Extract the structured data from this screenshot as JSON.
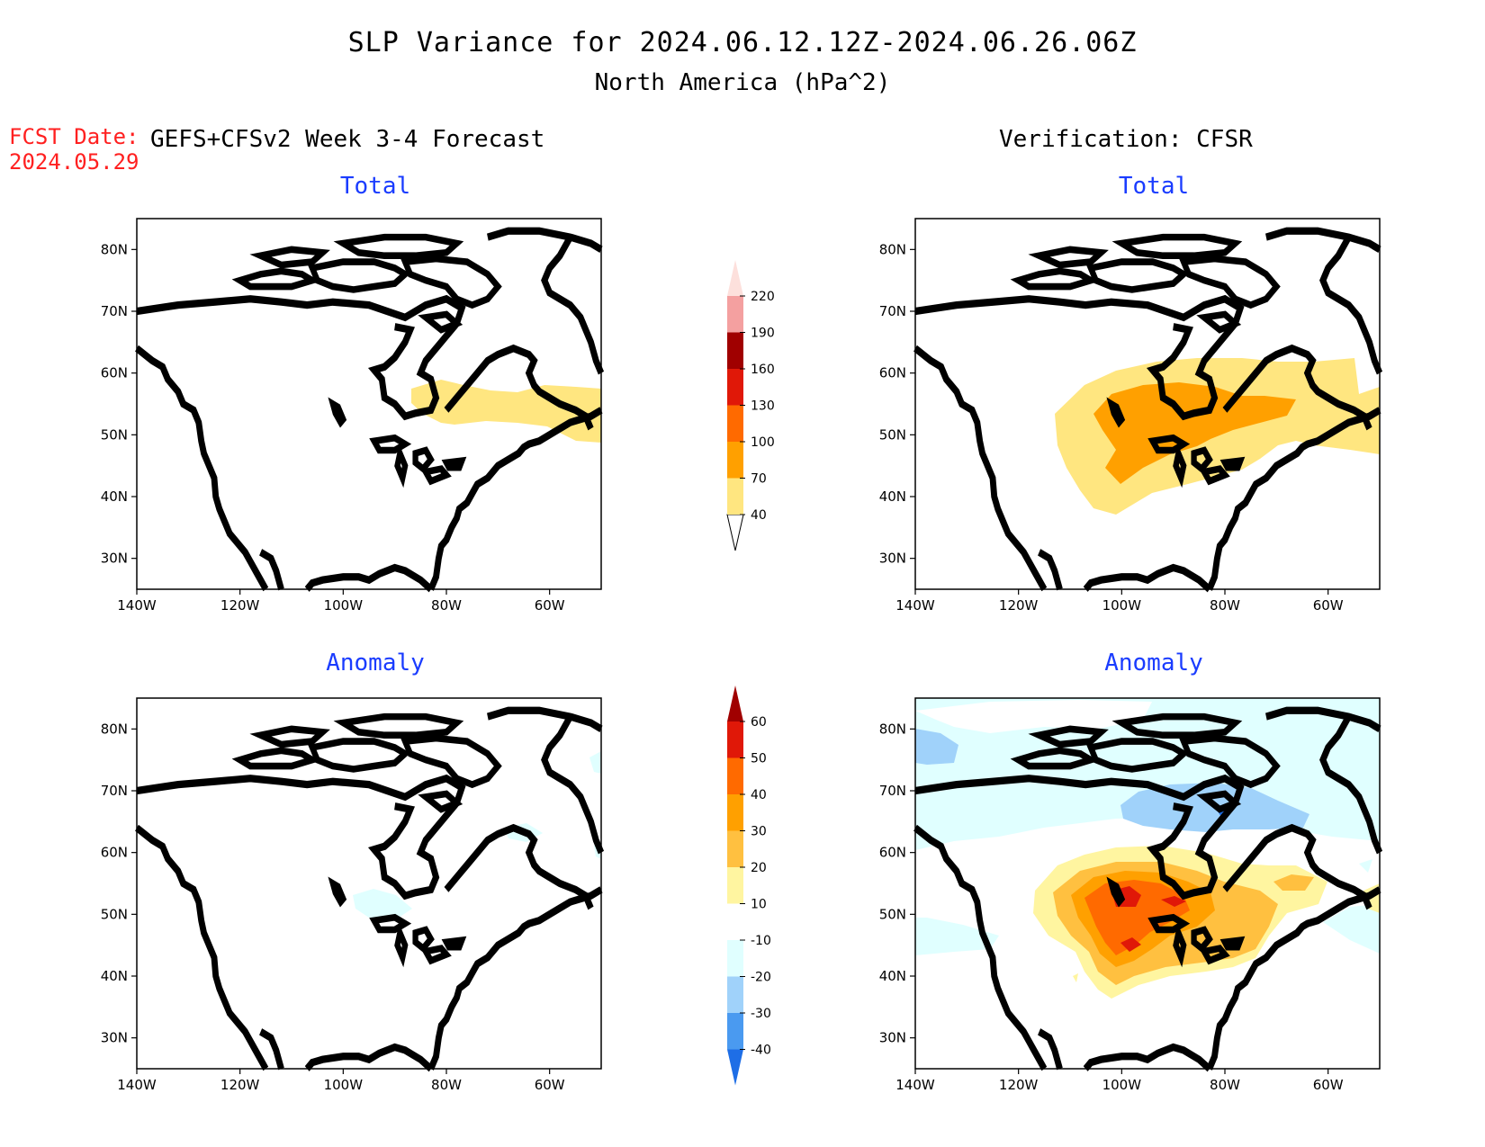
{
  "header": {
    "title": "SLP Variance for 2024.06.12.12Z-2024.06.26.06Z",
    "subtitle": "North America (hPa^2)",
    "fcst_label": "FCST Date:",
    "fcst_date": "2024.05.29",
    "left_column_title": "GEFS+CFSv2 Week 3-4 Forecast",
    "right_column_title": "Verification: CFSR"
  },
  "panels": {
    "fc_total": {
      "title": "Total"
    },
    "vr_total": {
      "title": "Total"
    },
    "fc_anom": {
      "title": "Anomaly"
    },
    "vr_anom": {
      "title": "Anomaly"
    }
  },
  "axes": {
    "lat_ticks": [
      "80N",
      "70N",
      "60N",
      "50N",
      "40N",
      "30N"
    ],
    "lon_ticks": [
      "140W",
      "120W",
      "100W",
      "80W",
      "60W"
    ]
  },
  "colorbars": {
    "total": {
      "labels": [
        "220",
        "190",
        "160",
        "130",
        "100",
        "70",
        "40"
      ],
      "colors": [
        "#fde0dc",
        "#f4a0a0",
        "#a00000",
        "#e01808",
        "#ff6a00",
        "#ffa000",
        "#ffe680"
      ]
    },
    "anomaly": {
      "labels": [
        "60",
        "50",
        "40",
        "30",
        "20",
        "10",
        "-10",
        "-20",
        "-30",
        "-40"
      ],
      "colors": [
        "#a00000",
        "#e01808",
        "#ff6a00",
        "#ffa000",
        "#ffc040",
        "#fff5a0",
        "#ffffff",
        "#e0ffff",
        "#a0d2fa",
        "#4a9af0",
        "#1e6ee6"
      ]
    }
  },
  "chart_data": {
    "type": "heatmap",
    "title": "SLP Variance for 2024.06.12.12Z-2024.06.26.06Z",
    "subtitle": "North America (hPa^2)",
    "xlim": [
      -140,
      -50
    ],
    "ylim": [
      25,
      85
    ],
    "fields": [
      {
        "name": "fc_total",
        "description_levels": "40-70 band near 55N from 85W to 50W"
      },
      {
        "name": "vr_total",
        "description_levels": "40-70 over central Canada and northern US, 70-100 core near 100W-80W, 45N-55N"
      },
      {
        "name": "fc_anom",
        "description_levels": "near zero; small -10 to -20 patch near 50N 92W"
      },
      {
        "name": "vr_anom",
        "description_levels": "positive 10-60 centered 50N 95W; negative -10 to -30 near 70N 90W-70W"
      }
    ]
  }
}
